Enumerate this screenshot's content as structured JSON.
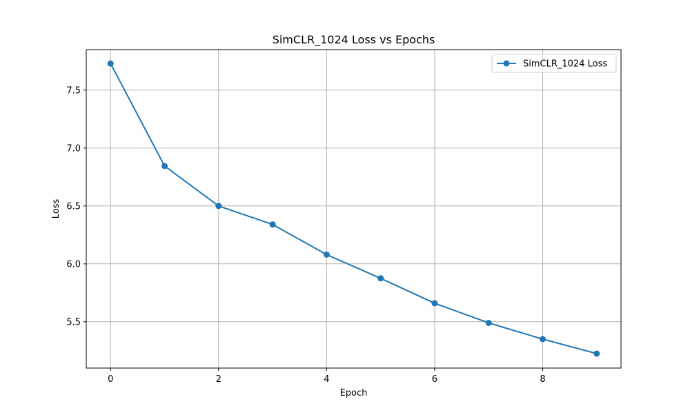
{
  "chart_data": {
    "type": "line",
    "title": "SimCLR_1024 Loss vs Epochs",
    "xlabel": "Epoch",
    "ylabel": "Loss",
    "xlim": [
      -0.45,
      9.45
    ],
    "ylim": [
      5.1,
      7.85
    ],
    "xticks": [
      0,
      2,
      4,
      6,
      8
    ],
    "xtick_labels": [
      "0",
      "2",
      "4",
      "6",
      "8"
    ],
    "yticks": [
      5.5,
      6.0,
      6.5,
      7.0,
      7.5
    ],
    "ytick_labels": [
      "5.5",
      "6.0",
      "6.5",
      "7.0",
      "7.5"
    ],
    "grid": true,
    "legend_position": "top-right",
    "series": [
      {
        "name": "SimCLR_1024 Loss",
        "color": "#1f77b4",
        "marker": "circle",
        "x": [
          0,
          1,
          2,
          3,
          4,
          5,
          6,
          7,
          8,
          9
        ],
        "values": [
          7.73,
          6.845,
          6.5,
          6.34,
          6.08,
          5.875,
          5.66,
          5.49,
          5.35,
          5.225
        ]
      }
    ]
  }
}
